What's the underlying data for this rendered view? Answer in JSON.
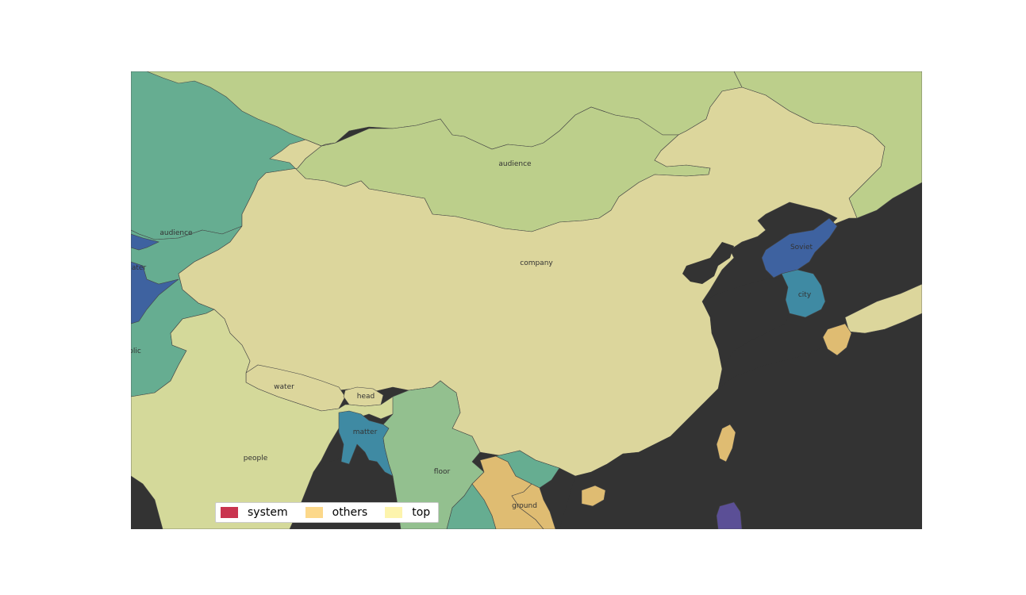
{
  "map": {
    "background_color": "#333333",
    "regions": [
      {
        "id": "audience-north",
        "label": "audience",
        "color": "#bccf8b"
      },
      {
        "id": "company",
        "label": "company",
        "color": "#dcd69c"
      },
      {
        "id": "audience-west",
        "label": "audience",
        "color": "#66ad91"
      },
      {
        "id": "water-west",
        "label": "ater",
        "color": "#66ad91"
      },
      {
        "id": "public-west",
        "label": "blic",
        "color": "#66ad91"
      },
      {
        "id": "people",
        "label": "people",
        "color": "#d4d99a"
      },
      {
        "id": "water",
        "label": "water",
        "color": "#dcd69c"
      },
      {
        "id": "head",
        "label": "head",
        "color": "#dcd69c"
      },
      {
        "id": "matter",
        "label": "matter",
        "color": "#3f8aa3"
      },
      {
        "id": "floor",
        "label": "floor",
        "color": "#93c08f"
      },
      {
        "id": "ground",
        "label": "ground",
        "color": "#dfbc72"
      },
      {
        "id": "soviet",
        "label": "Soviet",
        "color": "#3e62a0"
      },
      {
        "id": "city",
        "label": "city",
        "color": "#3f8aa3"
      },
      {
        "id": "japan",
        "label": "",
        "color": "#dcd69c"
      },
      {
        "id": "kyushu",
        "label": "",
        "color": "#dfbc72"
      },
      {
        "id": "taiwan",
        "label": "",
        "color": "#dfbc72"
      },
      {
        "id": "hainan",
        "label": "",
        "color": "#dfbc72"
      },
      {
        "id": "philippines",
        "label": "",
        "color": "#5b4f96"
      },
      {
        "id": "far-east",
        "label": "",
        "color": "#bccf8b"
      },
      {
        "id": "central-asia",
        "label": "",
        "color": "#66ad91"
      },
      {
        "id": "blue-strip",
        "label": "",
        "color": "#3e62a0"
      },
      {
        "id": "south-green",
        "label": "",
        "color": "#66ad91"
      },
      {
        "id": "vietnam",
        "label": "",
        "color": "#dfbc72"
      }
    ]
  },
  "legend": {
    "items": [
      {
        "label": "system",
        "color": "#c9344f"
      },
      {
        "label": "others",
        "color": "#fcd88a"
      },
      {
        "label": "top",
        "color": "#fdf4ad"
      }
    ]
  }
}
